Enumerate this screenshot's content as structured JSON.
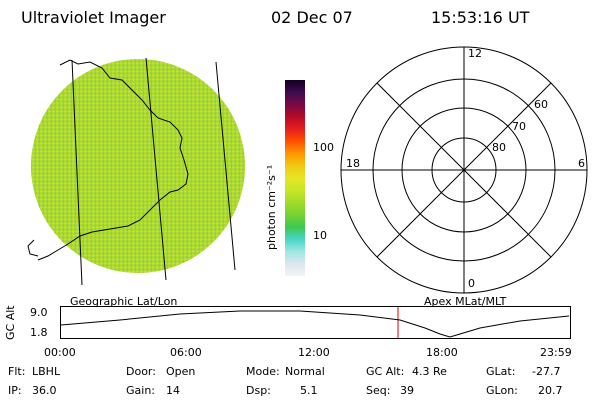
{
  "header": {
    "title": "Ultraviolet Imager",
    "date": "02 Dec 07",
    "time": "15:53:16 UT"
  },
  "colorbar": {
    "unit_label": "photon cm⁻²s⁻¹",
    "ticks": [
      "100",
      "10"
    ],
    "colors": [
      "#f4f4f4",
      "#dce6f0",
      "#9fe8e0",
      "#49d4c8",
      "#3cc850",
      "#78d232",
      "#a0dc28",
      "#c8e628",
      "#e6e628",
      "#f0c814",
      "#ff9600",
      "#ff5000",
      "#e61e1e",
      "#b40a28",
      "#780a46",
      "#3c0a50",
      "#14001e"
    ]
  },
  "polar_plot": {
    "mlt_labels": {
      "top": "12",
      "bottom": "0",
      "left": "18",
      "right": "6"
    },
    "lat_labels": [
      "60",
      "70",
      "80"
    ]
  },
  "panel_labels": {
    "left": "Geographic Lat/Lon",
    "right": "Apex MLat/MLT"
  },
  "orbit_plot": {
    "ylabel": "GC Alt",
    "ymax": "9.0",
    "ymin": "1.8",
    "xticks": [
      "00:00",
      "06:00",
      "12:00",
      "18:00",
      "23:59"
    ],
    "current_marker_hour": 15.89
  },
  "status": {
    "row1": [
      {
        "label": "Flt:",
        "value": "LBHL"
      },
      {
        "label": "Door:",
        "value": "Open"
      },
      {
        "label": "Mode:",
        "value": "Normal"
      },
      {
        "label": "GC Alt:",
        "value": "4.3 Re"
      },
      {
        "label": "GLat:",
        "value": "-27.7"
      }
    ],
    "row2": [
      {
        "label": "IP:",
        "value": "36.0"
      },
      {
        "label": "Gain:",
        "value": "14"
      },
      {
        "label": "Dsp:",
        "value": "5.1"
      },
      {
        "label": "Seq:",
        "value": "39"
      },
      {
        "label": "GLon:",
        "value": "20.7"
      }
    ]
  }
}
